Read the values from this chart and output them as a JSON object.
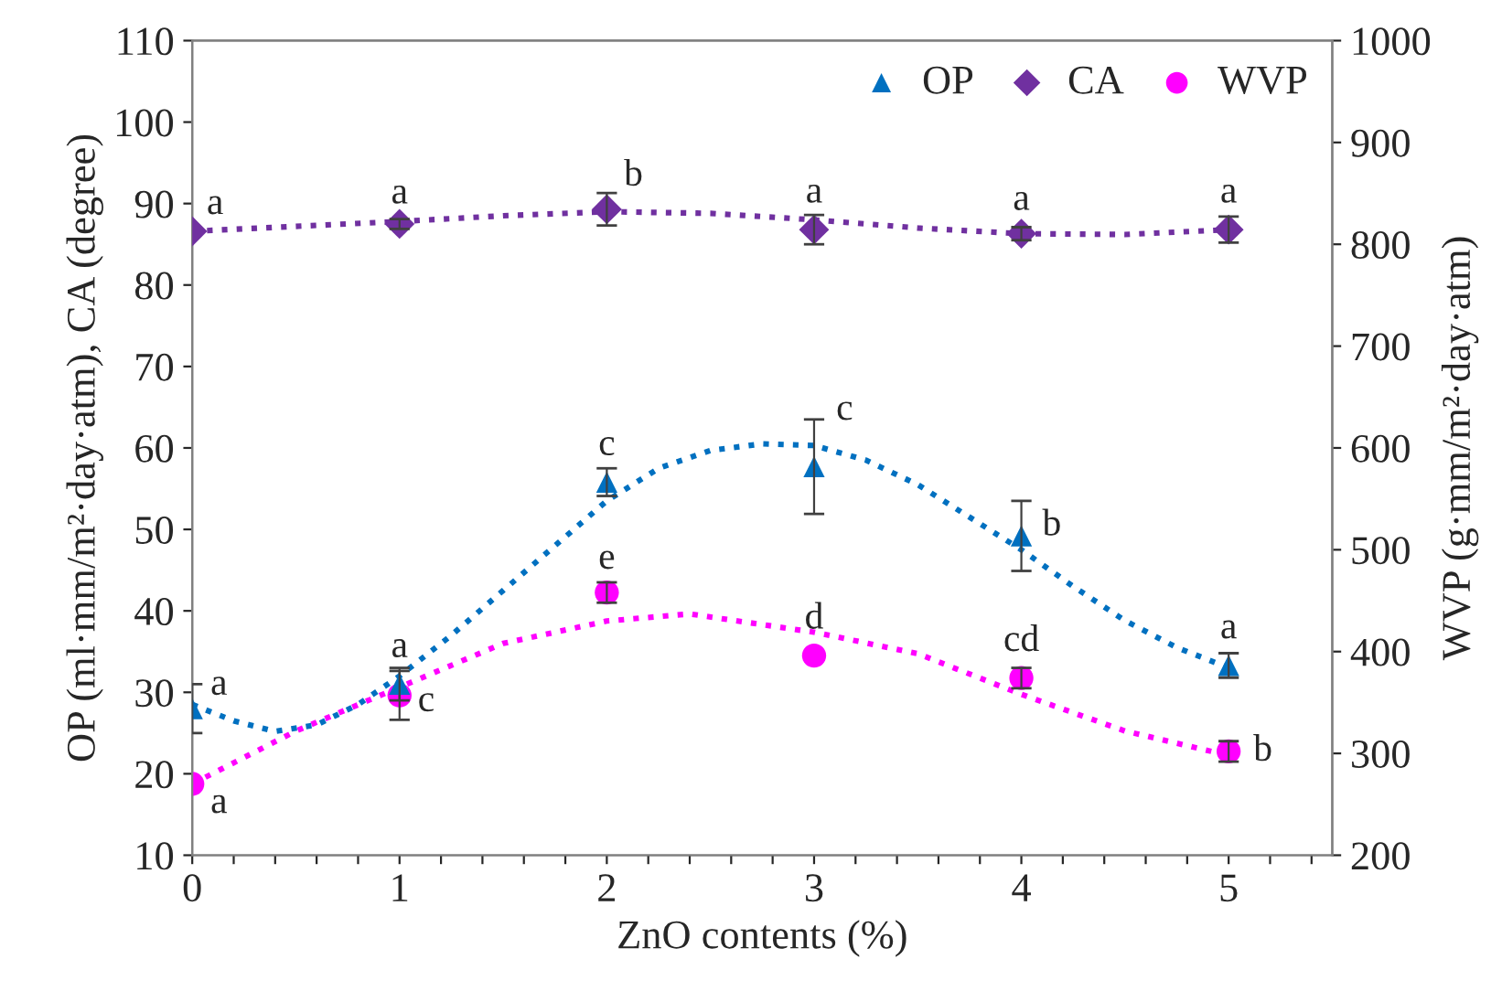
{
  "chart_data": {
    "type": "scatter",
    "xlabel": "ZnO contents (%)",
    "ylabel": "OP (ml·mm/m²·day·atm), CA (degree)",
    "y2label": "WVP (g·mm/m²·day·atm)",
    "xlim": [
      0,
      5.5
    ],
    "xticks": [
      0,
      {
        "value": 0.2,
        "label": null
      },
      {
        "value": 0.4,
        "label": null
      },
      {
        "value": 0.6,
        "label": null
      },
      {
        "value": 0.8,
        "label": null
      },
      1,
      {
        "value": 1.2,
        "label": null
      },
      {
        "value": 1.4,
        "label": null
      },
      {
        "value": 1.6,
        "label": null
      },
      {
        "value": 1.8,
        "label": null
      },
      2,
      {
        "value": 2.2,
        "label": null
      },
      {
        "value": 2.4,
        "label": null
      },
      {
        "value": 2.6,
        "label": null
      },
      {
        "value": 2.8,
        "label": null
      },
      3,
      {
        "value": 3.2,
        "label": null
      },
      {
        "value": 3.4,
        "label": null
      },
      {
        "value": 3.6,
        "label": null
      },
      {
        "value": 3.8,
        "label": null
      },
      4,
      {
        "value": 4.2,
        "label": null
      },
      {
        "value": 4.4,
        "label": null
      },
      {
        "value": 4.6,
        "label": null
      },
      {
        "value": 4.8,
        "label": null
      },
      5,
      {
        "value": 5.2,
        "label": null
      },
      {
        "value": 5.4,
        "label": null
      }
    ],
    "ylim": [
      10,
      110
    ],
    "yticks": [
      10,
      20,
      30,
      40,
      50,
      60,
      70,
      80,
      90,
      100,
      110
    ],
    "y2lim": [
      200,
      1000
    ],
    "y2ticks": [
      200,
      300,
      400,
      500,
      600,
      700,
      800,
      900,
      1000
    ],
    "grid": false,
    "legend": "top right",
    "series": [
      {
        "name": "OP",
        "axis": "y",
        "marker": "triangle",
        "color": "#0070c0",
        "x": [
          0,
          1,
          2,
          3,
          4,
          5
        ],
        "values": [
          28,
          31,
          55.8,
          57.7,
          49.2,
          33.3
        ],
        "errors": [
          3,
          2,
          1.7,
          5.8,
          4.3,
          1.5
        ]
      },
      {
        "name": "CA",
        "axis": "y",
        "marker": "diamond",
        "color": "#7030a0",
        "x": [
          0,
          1,
          2,
          3,
          4,
          5
        ],
        "values": [
          86.6,
          87.5,
          89.3,
          86.8,
          86.3,
          86.8
        ],
        "errors": [
          null,
          0.6,
          2,
          1.8,
          0.8,
          1.6
        ]
      },
      {
        "name": "WVP",
        "axis": "y2",
        "marker": "circle",
        "color": "#ff00ff",
        "x": [
          0,
          1,
          2,
          3,
          4,
          5
        ],
        "values": [
          270,
          357,
          458,
          396,
          374,
          302
        ],
        "errors": [
          null,
          24,
          10,
          null,
          10,
          10
        ]
      },
      {
        "type": "line",
        "axis": "y",
        "line_style": "dotted",
        "marker": "none",
        "color": "#0070c0",
        "x": [
          0,
          0.2,
          0.4,
          0.6,
          0.8,
          1,
          1.25,
          1.5,
          1.75,
          2,
          2.25,
          2.5,
          2.75,
          3,
          3.25,
          3.5,
          3.75,
          4,
          4.25,
          4.5,
          4.75,
          5
        ],
        "values": [
          28.5,
          26.5,
          25.2,
          26,
          28.5,
          32,
          37,
          42.5,
          48,
          53.5,
          57.5,
          59.7,
          60.5,
          60.3,
          58.5,
          55.5,
          51.5,
          47.5,
          43,
          38.8,
          35.5,
          33
        ]
      },
      {
        "type": "line",
        "axis": "y",
        "line_style": "dotted",
        "marker": "none",
        "color": "#7030a0",
        "x": [
          0,
          0.5,
          1,
          1.5,
          2,
          2.5,
          3,
          3.5,
          4,
          4.5,
          5
        ],
        "values": [
          86.6,
          87.2,
          87.8,
          88.5,
          89,
          88.8,
          88,
          87,
          86.3,
          86.2,
          86.8
        ]
      },
      {
        "type": "line",
        "axis": "y2",
        "line_style": "dotted",
        "marker": "none",
        "color": "#ff00ff",
        "x": [
          0,
          0.5,
          1,
          1.5,
          2,
          2.4,
          3,
          3.5,
          4,
          4.5,
          5
        ],
        "values": [
          270,
          322,
          365,
          408,
          430,
          437,
          419,
          398,
          358,
          322,
          298
        ]
      }
    ],
    "annotations": [
      {
        "text": "a",
        "x": 0,
        "y": 86.6
      },
      {
        "text": "a",
        "x": 1,
        "y": 87.5
      },
      {
        "text": "b",
        "x": 2,
        "y": 89.3
      },
      {
        "text": "a",
        "x": 3,
        "y": 86.8
      },
      {
        "text": "a",
        "x": 4,
        "y": 86.3
      },
      {
        "text": "a",
        "x": 5,
        "y": 86.8
      },
      {
        "text": "a",
        "x": 0,
        "y": 28
      },
      {
        "text": "a",
        "x": 1,
        "y": 31
      },
      {
        "text": "c",
        "x": 2,
        "y": 55.8
      },
      {
        "text": "c",
        "x": 3,
        "y": 57.7
      },
      {
        "text": "b",
        "x": 4,
        "y": 49.2
      },
      {
        "text": "a",
        "x": 5,
        "y": 33.3
      },
      {
        "text": "a",
        "x": 0,
        "y": 18.75
      },
      {
        "text": "c",
        "x": 1,
        "y": 29.625
      },
      {
        "text": "e",
        "x": 2,
        "y": 42.25
      },
      {
        "text": "d",
        "x": 3,
        "y": 34.5
      },
      {
        "text": "cd",
        "x": 4,
        "y": 31.75
      },
      {
        "text": "b",
        "x": 5,
        "y": 22.75
      }
    ]
  }
}
